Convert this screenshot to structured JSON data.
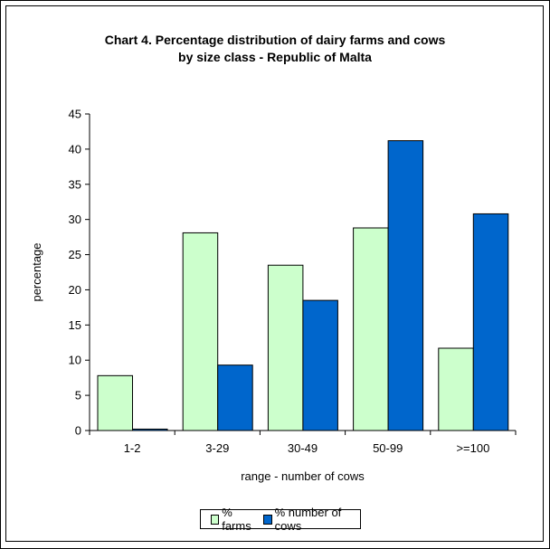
{
  "chart_data": {
    "type": "bar",
    "title": "Chart 4.  Percentage distribution of dairy farms and cows",
    "subtitle": "by size class - Republic of Malta",
    "xlabel": "range - number of cows",
    "ylabel": "percentage",
    "categories": [
      "1-2",
      "3-29",
      "30-49",
      "50-99",
      ">=100"
    ],
    "series": [
      {
        "name": "% farms",
        "color": "#ccffcc",
        "values": [
          7.8,
          28.1,
          23.5,
          28.8,
          11.7
        ]
      },
      {
        "name": "% number of cows",
        "color": "#0066cc",
        "values": [
          0.2,
          9.3,
          18.5,
          41.2,
          30.8
        ]
      }
    ],
    "ylim": [
      0,
      45
    ],
    "yticks": [
      0,
      5,
      10,
      15,
      20,
      25,
      30,
      35,
      40,
      45
    ],
    "grid": false,
    "legend_position": "bottom"
  }
}
